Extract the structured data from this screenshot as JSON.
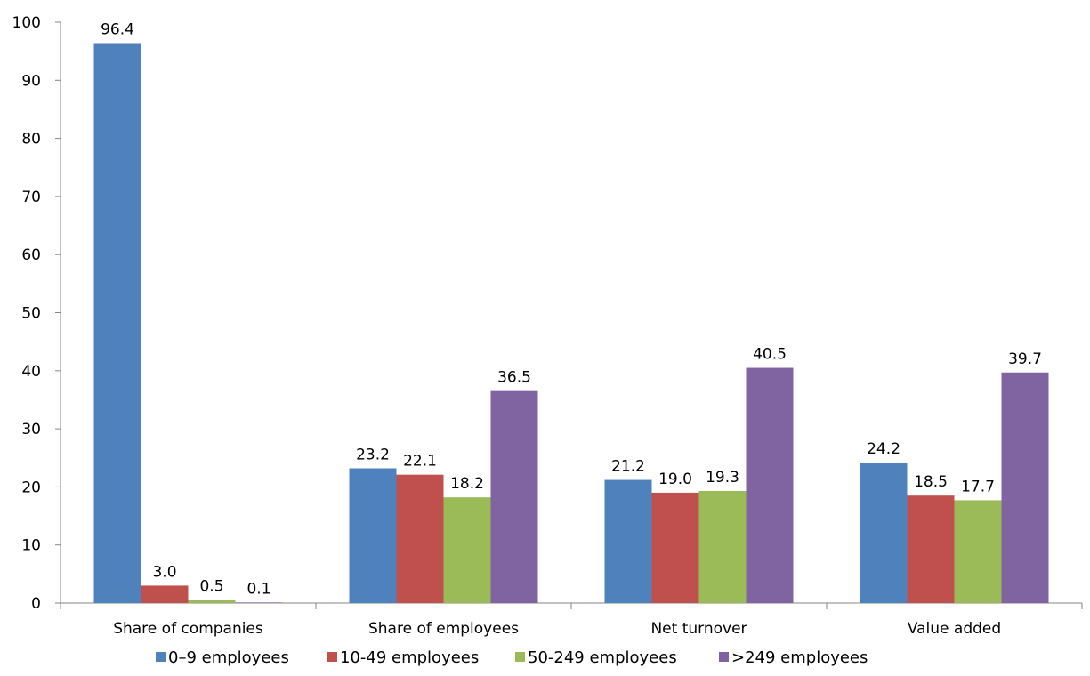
{
  "chart_data": {
    "type": "bar",
    "categories": [
      "Share of companies",
      "Share of employees",
      "Net turnover",
      "Value added"
    ],
    "series": [
      {
        "name": "0–9 employees",
        "values": [
          96.4,
          23.2,
          21.2,
          24.2
        ],
        "color": "#4F81BD"
      },
      {
        "name": "10-49 employees",
        "values": [
          3.0,
          22.1,
          19.0,
          18.5
        ],
        "color": "#C0504D"
      },
      {
        "name": "50-249 employees",
        "values": [
          0.5,
          18.2,
          19.3,
          17.7
        ],
        "color": "#9BBB59"
      },
      {
        "name": ">249 employees",
        "values": [
          0.1,
          36.5,
          40.5,
          39.7
        ],
        "color": "#8064A2"
      }
    ],
    "value_labels": [
      [
        "96.4",
        "23.2",
        "21.2",
        "24.2"
      ],
      [
        "3.0",
        "22.1",
        "19.0",
        "18.5"
      ],
      [
        "0.5",
        "18.2",
        "19.3",
        "17.7"
      ],
      [
        "0.1",
        "36.5",
        "40.5",
        "39.7"
      ]
    ],
    "ylim": [
      0,
      100
    ],
    "yticks": [
      0,
      10,
      20,
      30,
      40,
      50,
      60,
      70,
      80,
      90,
      100
    ],
    "ytick_labels": [
      "0",
      "10",
      "20",
      "30",
      "40",
      "50",
      "60",
      "70",
      "80",
      "90",
      "100"
    ],
    "grid": false,
    "legend_position": "bottom"
  }
}
